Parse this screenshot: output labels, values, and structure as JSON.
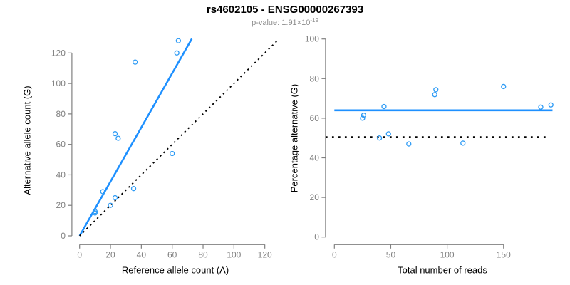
{
  "header": {
    "title": "rs4602105 - ENSG00000267393",
    "subtitle_prefix": "p-value: 1.91×10",
    "subtitle_exponent": "-19"
  },
  "colors": {
    "accent_blue": "#1E90FF",
    "point_blue": "#2E9BF5",
    "axis_gray": "#808080",
    "tick_label_gray": "#808080",
    "dotted_black": "#000000",
    "subtitle_gray": "#8c8c8c"
  },
  "chart_data": [
    {
      "type": "scatter",
      "panel": "left",
      "xlabel": "Reference allele count (A)",
      "ylabel": "Alternative allele count (G)",
      "xticks": [
        0,
        20,
        40,
        60,
        80,
        100,
        120
      ],
      "yticks": [
        0,
        20,
        40,
        60,
        80,
        100,
        120
      ],
      "xlim": [
        -5,
        128.5
      ],
      "ylim": [
        -5.8,
        131.5
      ],
      "grid": false,
      "points": [
        [
          10,
          15
        ],
        [
          10,
          16
        ],
        [
          15,
          29
        ],
        [
          20,
          20
        ],
        [
          23,
          25
        ],
        [
          23,
          67
        ],
        [
          25,
          64
        ],
        [
          35,
          31
        ],
        [
          36,
          114
        ],
        [
          60,
          54
        ],
        [
          63,
          120
        ],
        [
          64,
          128
        ]
      ],
      "lines": [
        {
          "name": "fit-line",
          "style": "solid",
          "color": "#1E90FF",
          "x1": 0,
          "y1": 0,
          "x2": 72.7,
          "y2": 129.3
        },
        {
          "name": "identity-line",
          "style": "dotted",
          "color": "#000000",
          "x1": 0,
          "y1": 0,
          "x2": 128.3,
          "y2": 128.3
        }
      ]
    },
    {
      "type": "scatter",
      "panel": "right",
      "xlabel": "Total number of reads",
      "ylabel": "Percentage alternative (G)",
      "xticks": [
        0,
        50,
        100,
        150
      ],
      "yticks": [
        0,
        20,
        40,
        60,
        80,
        100
      ],
      "xlim": [
        -7.8,
        193.5
      ],
      "ylim": [
        -4,
        104
      ],
      "grid": false,
      "points": [
        [
          25,
          60
        ],
        [
          26,
          61.5
        ],
        [
          40,
          50
        ],
        [
          44,
          65.9
        ],
        [
          48,
          52.1
        ],
        [
          66,
          47
        ],
        [
          89,
          71.9
        ],
        [
          90,
          74.4
        ],
        [
          114,
          47.4
        ],
        [
          150,
          76
        ],
        [
          183,
          65.6
        ],
        [
          192,
          66.7
        ]
      ],
      "lines": [
        {
          "name": "mean-line",
          "style": "solid",
          "color": "#1E90FF",
          "x1": 0,
          "y1": 64,
          "x2": 193.4,
          "y2": 64
        },
        {
          "name": "expected-line",
          "style": "dotted",
          "color": "#000000",
          "x1": -7.8,
          "y1": 50.5,
          "x2": 189,
          "y2": 50.5
        }
      ]
    }
  ]
}
